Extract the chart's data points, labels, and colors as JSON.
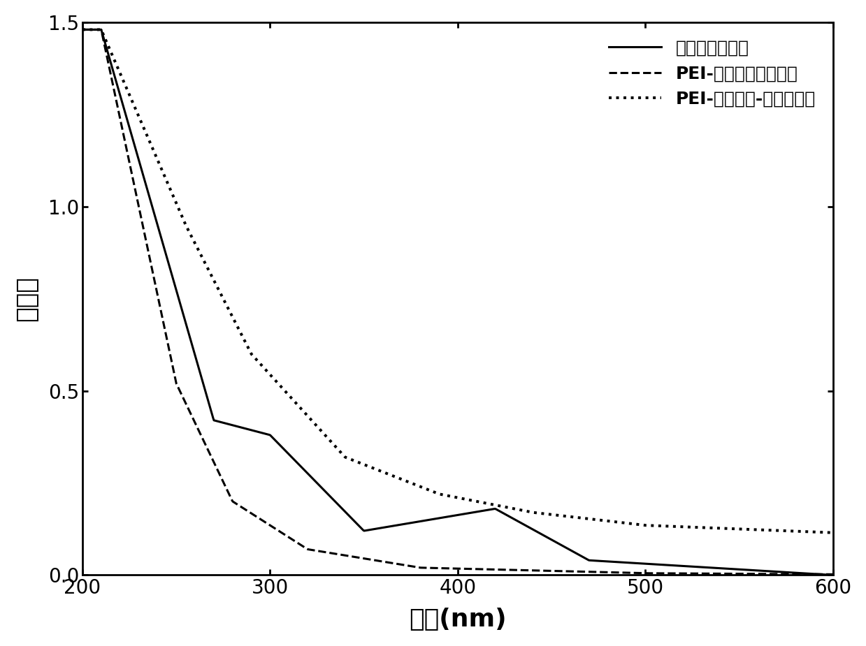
{
  "xlim": [
    200,
    600
  ],
  "ylim": [
    0,
    1.5
  ],
  "xlabel": "波长(nm)",
  "ylabel": "吸光度",
  "xticks": [
    200,
    300,
    400,
    500,
    600
  ],
  "yticks": [
    0.0,
    0.5,
    1.0,
    1.5
  ],
  "legend": [
    {
      "label": "四氯钯酸钠溶液",
      "linestyle": "solid"
    },
    {
      "label": "PEI-环丙沙星胶束溶液",
      "linestyle": "dashed"
    },
    {
      "label": "PEI-环丙沙星-钯纳米粒子",
      "linestyle": "dotted"
    }
  ],
  "line_color": "#000000",
  "line_width": 2.2,
  "background_color": "#ffffff",
  "title_fontsize": 22,
  "label_fontsize": 26,
  "tick_fontsize": 20,
  "legend_fontsize": 18
}
